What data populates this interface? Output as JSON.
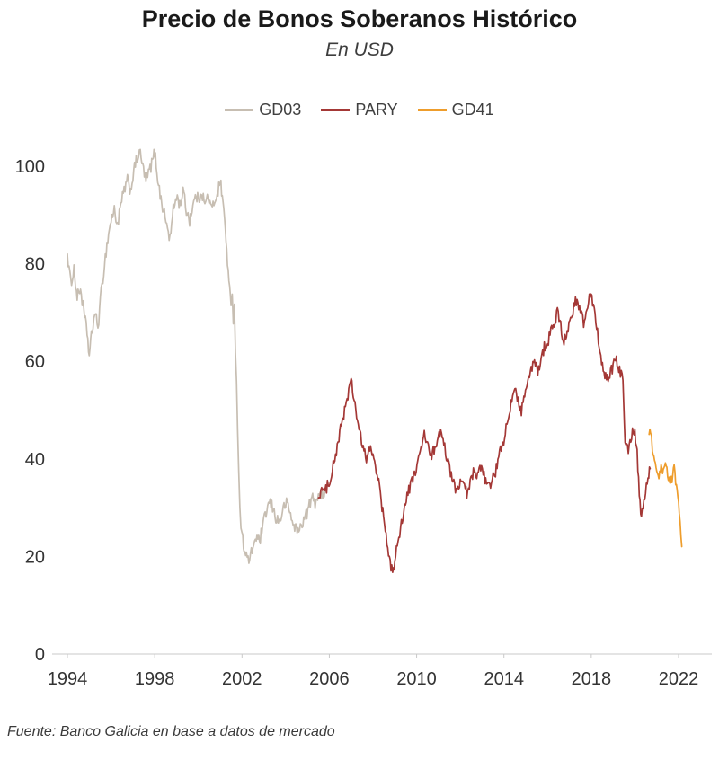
{
  "header": {
    "title": "Precio de Bonos Soberanos Histórico",
    "subtitle": "En USD"
  },
  "footer": {
    "source": "Fuente: Banco Galicia en base a datos de mercado"
  },
  "chart_data": {
    "type": "line",
    "title": "Precio de Bonos Soberanos Histórico",
    "subtitle": "En USD",
    "xlabel": "",
    "ylabel": "",
    "grid": false,
    "legend_position": "top-center",
    "x_ticks": [
      1994,
      1998,
      2002,
      2006,
      2010,
      2014,
      2018,
      2022
    ],
    "y_ticks": [
      0,
      20,
      40,
      60,
      80,
      100
    ],
    "x_range": [
      1994,
      2022.4
    ],
    "y_range": [
      0,
      105
    ],
    "axis_color": "#c9c9c9",
    "series": [
      {
        "name": "GD03",
        "color": "#c7beb2",
        "noise_amplitude": 2.6,
        "points": [
          [
            1994.0,
            82
          ],
          [
            1994.15,
            76
          ],
          [
            1994.3,
            79
          ],
          [
            1994.45,
            73
          ],
          [
            1994.6,
            75
          ],
          [
            1994.75,
            70
          ],
          [
            1994.9,
            66
          ],
          [
            1995.0,
            61
          ],
          [
            1995.1,
            65
          ],
          [
            1995.25,
            70
          ],
          [
            1995.4,
            67
          ],
          [
            1995.55,
            74
          ],
          [
            1995.7,
            80
          ],
          [
            1995.85,
            85
          ],
          [
            1996.0,
            89
          ],
          [
            1996.15,
            91
          ],
          [
            1996.3,
            88
          ],
          [
            1996.45,
            92
          ],
          [
            1996.6,
            95
          ],
          [
            1996.75,
            97
          ],
          [
            1996.9,
            95
          ],
          [
            1997.0,
            98
          ],
          [
            1997.15,
            101
          ],
          [
            1997.3,
            103
          ],
          [
            1997.45,
            100
          ],
          [
            1997.6,
            97
          ],
          [
            1997.75,
            99
          ],
          [
            1997.9,
            101
          ],
          [
            1998.0,
            103
          ],
          [
            1998.1,
            99
          ],
          [
            1998.25,
            94
          ],
          [
            1998.4,
            91
          ],
          [
            1998.55,
            88
          ],
          [
            1998.7,
            85
          ],
          [
            1998.85,
            91
          ],
          [
            1999.0,
            94
          ],
          [
            1999.15,
            92
          ],
          [
            1999.3,
            95
          ],
          [
            1999.45,
            91
          ],
          [
            1999.6,
            89
          ],
          [
            1999.75,
            92
          ],
          [
            1999.9,
            94
          ],
          [
            2000.0,
            93
          ],
          [
            2000.15,
            95
          ],
          [
            2000.3,
            92
          ],
          [
            2000.45,
            94
          ],
          [
            2000.6,
            91
          ],
          [
            2000.75,
            93
          ],
          [
            2000.9,
            95
          ],
          [
            2001.0,
            97
          ],
          [
            2001.1,
            94
          ],
          [
            2001.2,
            89
          ],
          [
            2001.3,
            83
          ],
          [
            2001.4,
            76
          ],
          [
            2001.5,
            71
          ],
          [
            2001.55,
            75
          ],
          [
            2001.6,
            68
          ],
          [
            2001.65,
            73
          ],
          [
            2001.7,
            62
          ],
          [
            2001.75,
            55
          ],
          [
            2001.8,
            47
          ],
          [
            2001.85,
            38
          ],
          [
            2001.9,
            30
          ],
          [
            2001.95,
            27
          ],
          [
            2002.0,
            24
          ],
          [
            2002.1,
            22
          ],
          [
            2002.2,
            20
          ],
          [
            2002.35,
            19
          ],
          [
            2002.5,
            22
          ],
          [
            2002.65,
            24
          ],
          [
            2002.8,
            23
          ],
          [
            2002.95,
            26
          ],
          [
            2003.1,
            29
          ],
          [
            2003.25,
            31
          ],
          [
            2003.4,
            30
          ],
          [
            2003.55,
            28
          ],
          [
            2003.7,
            27
          ],
          [
            2003.85,
            29
          ],
          [
            2004.0,
            31
          ],
          [
            2004.15,
            30
          ],
          [
            2004.3,
            27
          ],
          [
            2004.45,
            26
          ],
          [
            2004.6,
            25
          ],
          [
            2004.75,
            27
          ],
          [
            2004.9,
            28
          ],
          [
            2005.05,
            30
          ],
          [
            2005.2,
            32
          ],
          [
            2005.35,
            31
          ],
          [
            2005.5,
            33
          ],
          [
            2005.65,
            32
          ],
          [
            2005.8,
            34
          ],
          [
            2005.95,
            35
          ]
        ]
      },
      {
        "name": "PARY",
        "color": "#a43836",
        "noise_amplitude": 2.4,
        "points": [
          [
            2005.5,
            32
          ],
          [
            2005.65,
            34
          ],
          [
            2005.8,
            33
          ],
          [
            2005.95,
            35
          ],
          [
            2006.1,
            37
          ],
          [
            2006.25,
            40
          ],
          [
            2006.4,
            43
          ],
          [
            2006.55,
            47
          ],
          [
            2006.7,
            50
          ],
          [
            2006.85,
            53
          ],
          [
            2007.0,
            56
          ],
          [
            2007.1,
            53
          ],
          [
            2007.25,
            49
          ],
          [
            2007.4,
            45
          ],
          [
            2007.55,
            42
          ],
          [
            2007.7,
            40
          ],
          [
            2007.85,
            42
          ],
          [
            2008.0,
            41
          ],
          [
            2008.15,
            38
          ],
          [
            2008.3,
            34
          ],
          [
            2008.45,
            29
          ],
          [
            2008.6,
            24
          ],
          [
            2008.75,
            19
          ],
          [
            2008.9,
            17
          ],
          [
            2009.0,
            19
          ],
          [
            2009.15,
            23
          ],
          [
            2009.3,
            27
          ],
          [
            2009.45,
            30
          ],
          [
            2009.6,
            33
          ],
          [
            2009.75,
            35
          ],
          [
            2009.9,
            37
          ],
          [
            2010.05,
            39
          ],
          [
            2010.2,
            42
          ],
          [
            2010.35,
            45
          ],
          [
            2010.5,
            43
          ],
          [
            2010.65,
            40
          ],
          [
            2010.8,
            42
          ],
          [
            2010.95,
            44
          ],
          [
            2011.1,
            45
          ],
          [
            2011.25,
            43
          ],
          [
            2011.4,
            40
          ],
          [
            2011.55,
            37
          ],
          [
            2011.7,
            35
          ],
          [
            2011.85,
            33
          ],
          [
            2012.0,
            36
          ],
          [
            2012.15,
            34
          ],
          [
            2012.3,
            33
          ],
          [
            2012.45,
            35
          ],
          [
            2012.6,
            37
          ],
          [
            2012.75,
            36
          ],
          [
            2012.9,
            38
          ],
          [
            2013.05,
            37
          ],
          [
            2013.2,
            35
          ],
          [
            2013.35,
            34
          ],
          [
            2013.5,
            36
          ],
          [
            2013.65,
            38
          ],
          [
            2013.8,
            41
          ],
          [
            2013.95,
            43
          ],
          [
            2014.1,
            46
          ],
          [
            2014.25,
            49
          ],
          [
            2014.4,
            53
          ],
          [
            2014.5,
            55
          ],
          [
            2014.65,
            52
          ],
          [
            2014.8,
            50
          ],
          [
            2014.95,
            53
          ],
          [
            2015.1,
            56
          ],
          [
            2015.25,
            58
          ],
          [
            2015.4,
            60
          ],
          [
            2015.55,
            58
          ],
          [
            2015.7,
            60
          ],
          [
            2015.85,
            63
          ],
          [
            2016.0,
            64
          ],
          [
            2016.15,
            66
          ],
          [
            2016.3,
            68
          ],
          [
            2016.45,
            70
          ],
          [
            2016.6,
            67
          ],
          [
            2016.75,
            64
          ],
          [
            2016.9,
            66
          ],
          [
            2017.05,
            69
          ],
          [
            2017.2,
            71
          ],
          [
            2017.35,
            73
          ],
          [
            2017.5,
            70
          ],
          [
            2017.65,
            68
          ],
          [
            2017.8,
            71
          ],
          [
            2017.95,
            74
          ],
          [
            2018.1,
            72
          ],
          [
            2018.25,
            67
          ],
          [
            2018.4,
            62
          ],
          [
            2018.55,
            58
          ],
          [
            2018.7,
            56
          ],
          [
            2018.85,
            57
          ],
          [
            2019.0,
            59
          ],
          [
            2019.15,
            60
          ],
          [
            2019.3,
            58
          ],
          [
            2019.45,
            57
          ],
          [
            2019.55,
            44
          ],
          [
            2019.7,
            42
          ],
          [
            2019.85,
            45
          ],
          [
            2020.0,
            46
          ],
          [
            2020.1,
            41
          ],
          [
            2020.2,
            33
          ],
          [
            2020.3,
            28
          ],
          [
            2020.45,
            32
          ],
          [
            2020.6,
            36
          ],
          [
            2020.7,
            38
          ]
        ]
      },
      {
        "name": "GD41",
        "color": "#ee9d2c",
        "noise_amplitude": 1.8,
        "points": [
          [
            2020.65,
            45
          ],
          [
            2020.72,
            46
          ],
          [
            2020.8,
            42
          ],
          [
            2020.9,
            39
          ],
          [
            2021.0,
            37
          ],
          [
            2021.1,
            36
          ],
          [
            2021.2,
            38
          ],
          [
            2021.3,
            37
          ],
          [
            2021.4,
            39
          ],
          [
            2021.5,
            37
          ],
          [
            2021.6,
            35
          ],
          [
            2021.7,
            36
          ],
          [
            2021.8,
            38
          ],
          [
            2021.9,
            34
          ],
          [
            2022.0,
            31
          ],
          [
            2022.07,
            27
          ],
          [
            2022.15,
            22
          ]
        ]
      }
    ]
  }
}
